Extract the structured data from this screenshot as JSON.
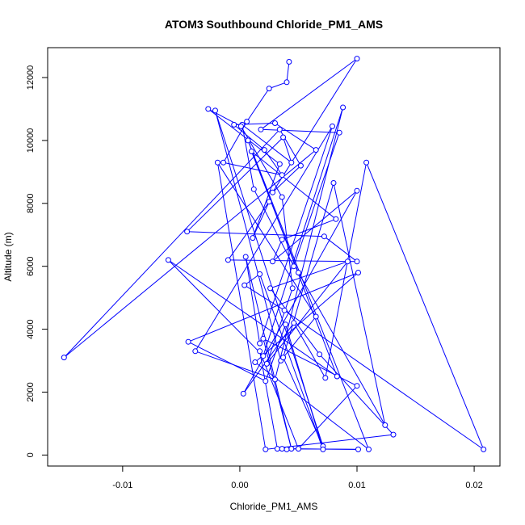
{
  "chart_data": {
    "type": "line",
    "title": "ATOM3 Southbound Chloride_PM1_AMS",
    "xlabel": "Chloride_PM1_AMS",
    "ylabel": "Altitude (m)",
    "xlim": [
      -0.0164,
      0.0222
    ],
    "ylim": [
      -350,
      12950
    ],
    "x_ticks": [
      -0.01,
      0.0,
      0.01,
      0.02
    ],
    "x_tick_labels": [
      "-0.01",
      "0.00",
      "0.01",
      "0.02"
    ],
    "y_ticks": [
      0,
      2000,
      4000,
      6000,
      8000,
      10000,
      12000
    ],
    "y_tick_labels": [
      "0",
      "2000",
      "4000",
      "6000",
      "8000",
      "10000",
      "12000"
    ],
    "marker": "open-circle",
    "series_color": "#0000ff",
    "series": [
      {
        "x": [
          0.0042,
          0.004,
          0.0025,
          0.0006,
          -0.0014,
          0.0036,
          0.0021,
          -0.0005,
          0.003,
          0.0065,
          -0.015,
          0.0034,
          0.0052,
          0.0028,
          0.01,
          0.0018,
          0.0085,
          0.0046,
          0.0012,
          0.0002,
          0.0044,
          0.0037,
          -0.0045,
          0.0072,
          0.01,
          -0.001,
          0.0025,
          0.0011,
          0.0034,
          -0.0027,
          0.0001,
          0.0036,
          0.0045,
          0.0023,
          0.0092,
          0.0026,
          0.0068,
          0.0131,
          0.0022,
          -0.0019,
          0.0065,
          0.0035,
          -0.0021,
          0.0071,
          0.0037,
          0.008,
          0.0124,
          0.005,
          0.001,
          0.0082,
          0.0036,
          0.0028,
          0.01,
          0.0003,
          0.0046,
          0.0073,
          0.0108,
          0.0208,
          0.0038,
          0.0004,
          0.0017,
          0.0071,
          0.0039,
          0.0022,
          -0.0044,
          0.0101,
          0.0013,
          0.011,
          0.0007,
          0.0083,
          -0.0061,
          0.002,
          0.0088,
          0.003,
          -0.0038,
          0.0079,
          0.0017,
          0.0005,
          0.0044,
          0.002,
          0.01,
          0.005,
          0.0017,
          0.0032,
          0.0101,
          0.0036,
          0.004
        ],
        "y": [
          12500,
          11850,
          11650,
          10600,
          9300,
          8900,
          9700,
          10500,
          10550,
          9700,
          3100,
          10350,
          9200,
          8350,
          12600,
          10350,
          10250,
          6000,
          8450,
          10500,
          9300,
          10100,
          7100,
          6950,
          6150,
          6200,
          8050,
          6900,
          9250,
          11000,
          10450,
          8200,
          5300,
          2900,
          6150,
          5300,
          3200,
          650,
          180,
          9300,
          4400,
          3000,
          10950,
          280,
          3100,
          8650,
          950,
          5800,
          9650,
          7500,
          6850,
          6150,
          8400,
          1950,
          4200,
          2450,
          9300,
          180,
          4600,
          5400,
          5750,
          180,
          4150,
          2350,
          3600,
          5800,
          2950,
          180,
          10000,
          2500,
          6200,
          3150,
          11050,
          2400,
          3300,
          10450,
          3550,
          6300,
          200,
          3700,
          2200,
          200,
          3300,
          200,
          180,
          200,
          180
        ]
      }
    ]
  }
}
